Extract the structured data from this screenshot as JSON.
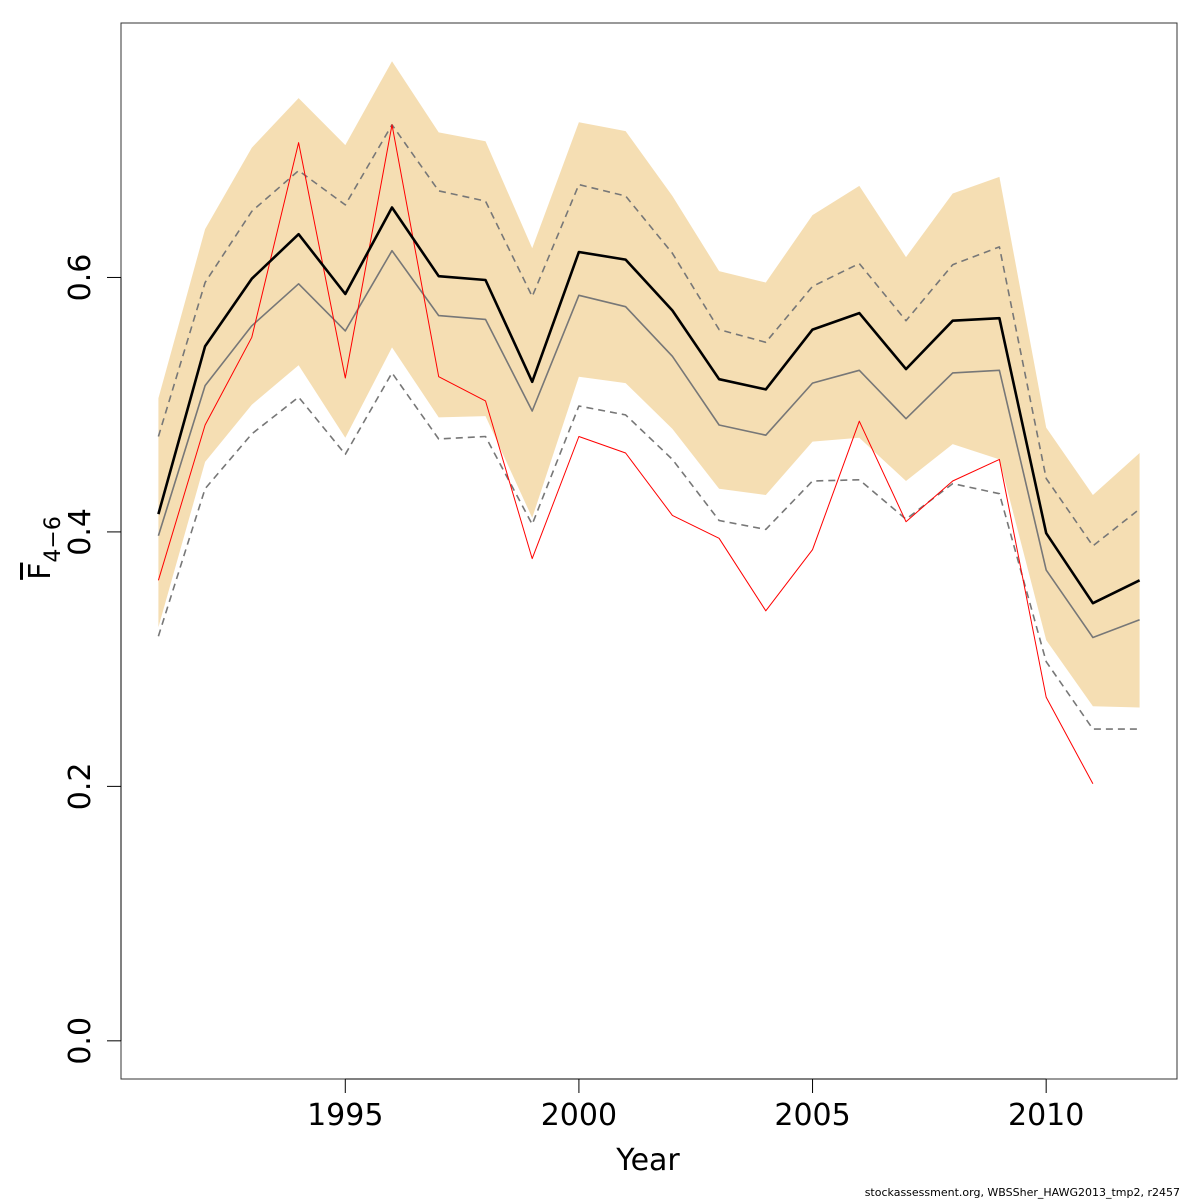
{
  "chart_data": {
    "type": "line",
    "xlabel": "Year",
    "ylabel": {
      "base": "F",
      "subscript": "4−6"
    },
    "xlim": [
      1990.2,
      2012.8
    ],
    "ylim": [
      -0.03,
      0.8
    ],
    "x_ticks": [
      1995,
      2000,
      2005,
      2010
    ],
    "y_ticks": [
      0.0,
      0.2,
      0.4,
      0.6
    ],
    "x_tick_labels": [
      "1995",
      "2000",
      "2005",
      "2010"
    ],
    "y_tick_labels": [
      "0.0",
      "0.2",
      "0.4",
      "0.6"
    ],
    "x": [
      1991,
      1992,
      1993,
      1994,
      1995,
      1996,
      1997,
      1998,
      1999,
      2000,
      2001,
      2002,
      2003,
      2004,
      2005,
      2006,
      2007,
      2008,
      2009,
      2010,
      2011,
      2012
    ],
    "band": {
      "color": "#F5DEB3",
      "upper": [
        0.505,
        0.638,
        0.702,
        0.741,
        0.704,
        0.77,
        0.714,
        0.707,
        0.623,
        0.722,
        0.715,
        0.664,
        0.605,
        0.596,
        0.649,
        0.672,
        0.616,
        0.666,
        0.679,
        0.482,
        0.429,
        0.462
      ],
      "lower": [
        0.325,
        0.455,
        0.5,
        0.531,
        0.474,
        0.545,
        0.49,
        0.491,
        0.411,
        0.522,
        0.517,
        0.481,
        0.434,
        0.429,
        0.471,
        0.474,
        0.44,
        0.469,
        0.457,
        0.315,
        0.263,
        0.262
      ]
    },
    "series": [
      {
        "style": "solid-black-thick",
        "color": "#000000",
        "values": [
          0.414,
          0.546,
          0.599,
          0.634,
          0.587,
          0.655,
          0.601,
          0.598,
          0.518,
          0.62,
          0.614,
          0.574,
          0.52,
          0.512,
          0.559,
          0.572,
          0.528,
          0.566,
          0.568,
          0.399,
          0.344,
          0.362
        ]
      },
      {
        "style": "solid-grey",
        "color": "#777777",
        "values": [
          0.397,
          0.515,
          0.562,
          0.595,
          0.558,
          0.621,
          0.57,
          0.567,
          0.495,
          0.586,
          0.577,
          0.538,
          0.484,
          0.476,
          0.517,
          0.527,
          0.489,
          0.525,
          0.527,
          0.37,
          0.317,
          0.331
        ]
      },
      {
        "style": "dashed-grey-upper",
        "color": "#777777",
        "values": [
          0.475,
          0.596,
          0.652,
          0.684,
          0.657,
          0.72,
          0.668,
          0.66,
          0.585,
          0.673,
          0.664,
          0.619,
          0.559,
          0.549,
          0.593,
          0.611,
          0.566,
          0.61,
          0.624,
          0.442,
          0.389,
          0.418
        ]
      },
      {
        "style": "dashed-grey-lower",
        "color": "#777777",
        "values": [
          0.318,
          0.434,
          0.477,
          0.506,
          0.461,
          0.525,
          0.473,
          0.475,
          0.406,
          0.499,
          0.492,
          0.457,
          0.409,
          0.402,
          0.44,
          0.441,
          0.41,
          0.438,
          0.43,
          0.298,
          0.245,
          0.245
        ]
      },
      {
        "style": "solid-red-thin",
        "color": "#FF0000",
        "values": [
          0.362,
          0.484,
          0.553,
          0.706,
          0.521,
          0.72,
          0.522,
          0.503,
          0.379,
          0.475,
          0.462,
          0.413,
          0.395,
          0.338,
          0.386,
          0.487,
          0.408,
          0.44,
          0.457,
          0.27,
          0.202,
          null
        ]
      }
    ]
  },
  "footer": {
    "text": "stockassessment.org, WBSSher_HAWG2013_tmp2, r2457"
  }
}
